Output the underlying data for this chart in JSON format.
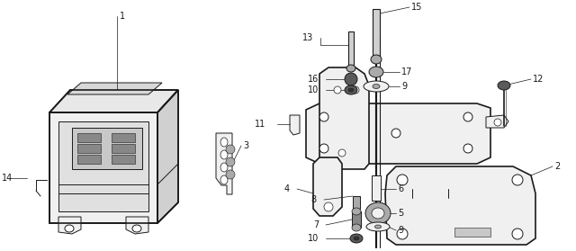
{
  "bg_color": "#ffffff",
  "line_color": "#1a1a1a",
  "fig_width": 6.4,
  "fig_height": 2.79,
  "dpi": 100,
  "lw_main": 1.2,
  "lw_thin": 0.7,
  "lw_label": 0.5,
  "fc_body": "#f0f0f0",
  "fc_dark": "#5a5a5a",
  "fc_mid": "#aaaaaa",
  "fc_white": "#ffffff"
}
